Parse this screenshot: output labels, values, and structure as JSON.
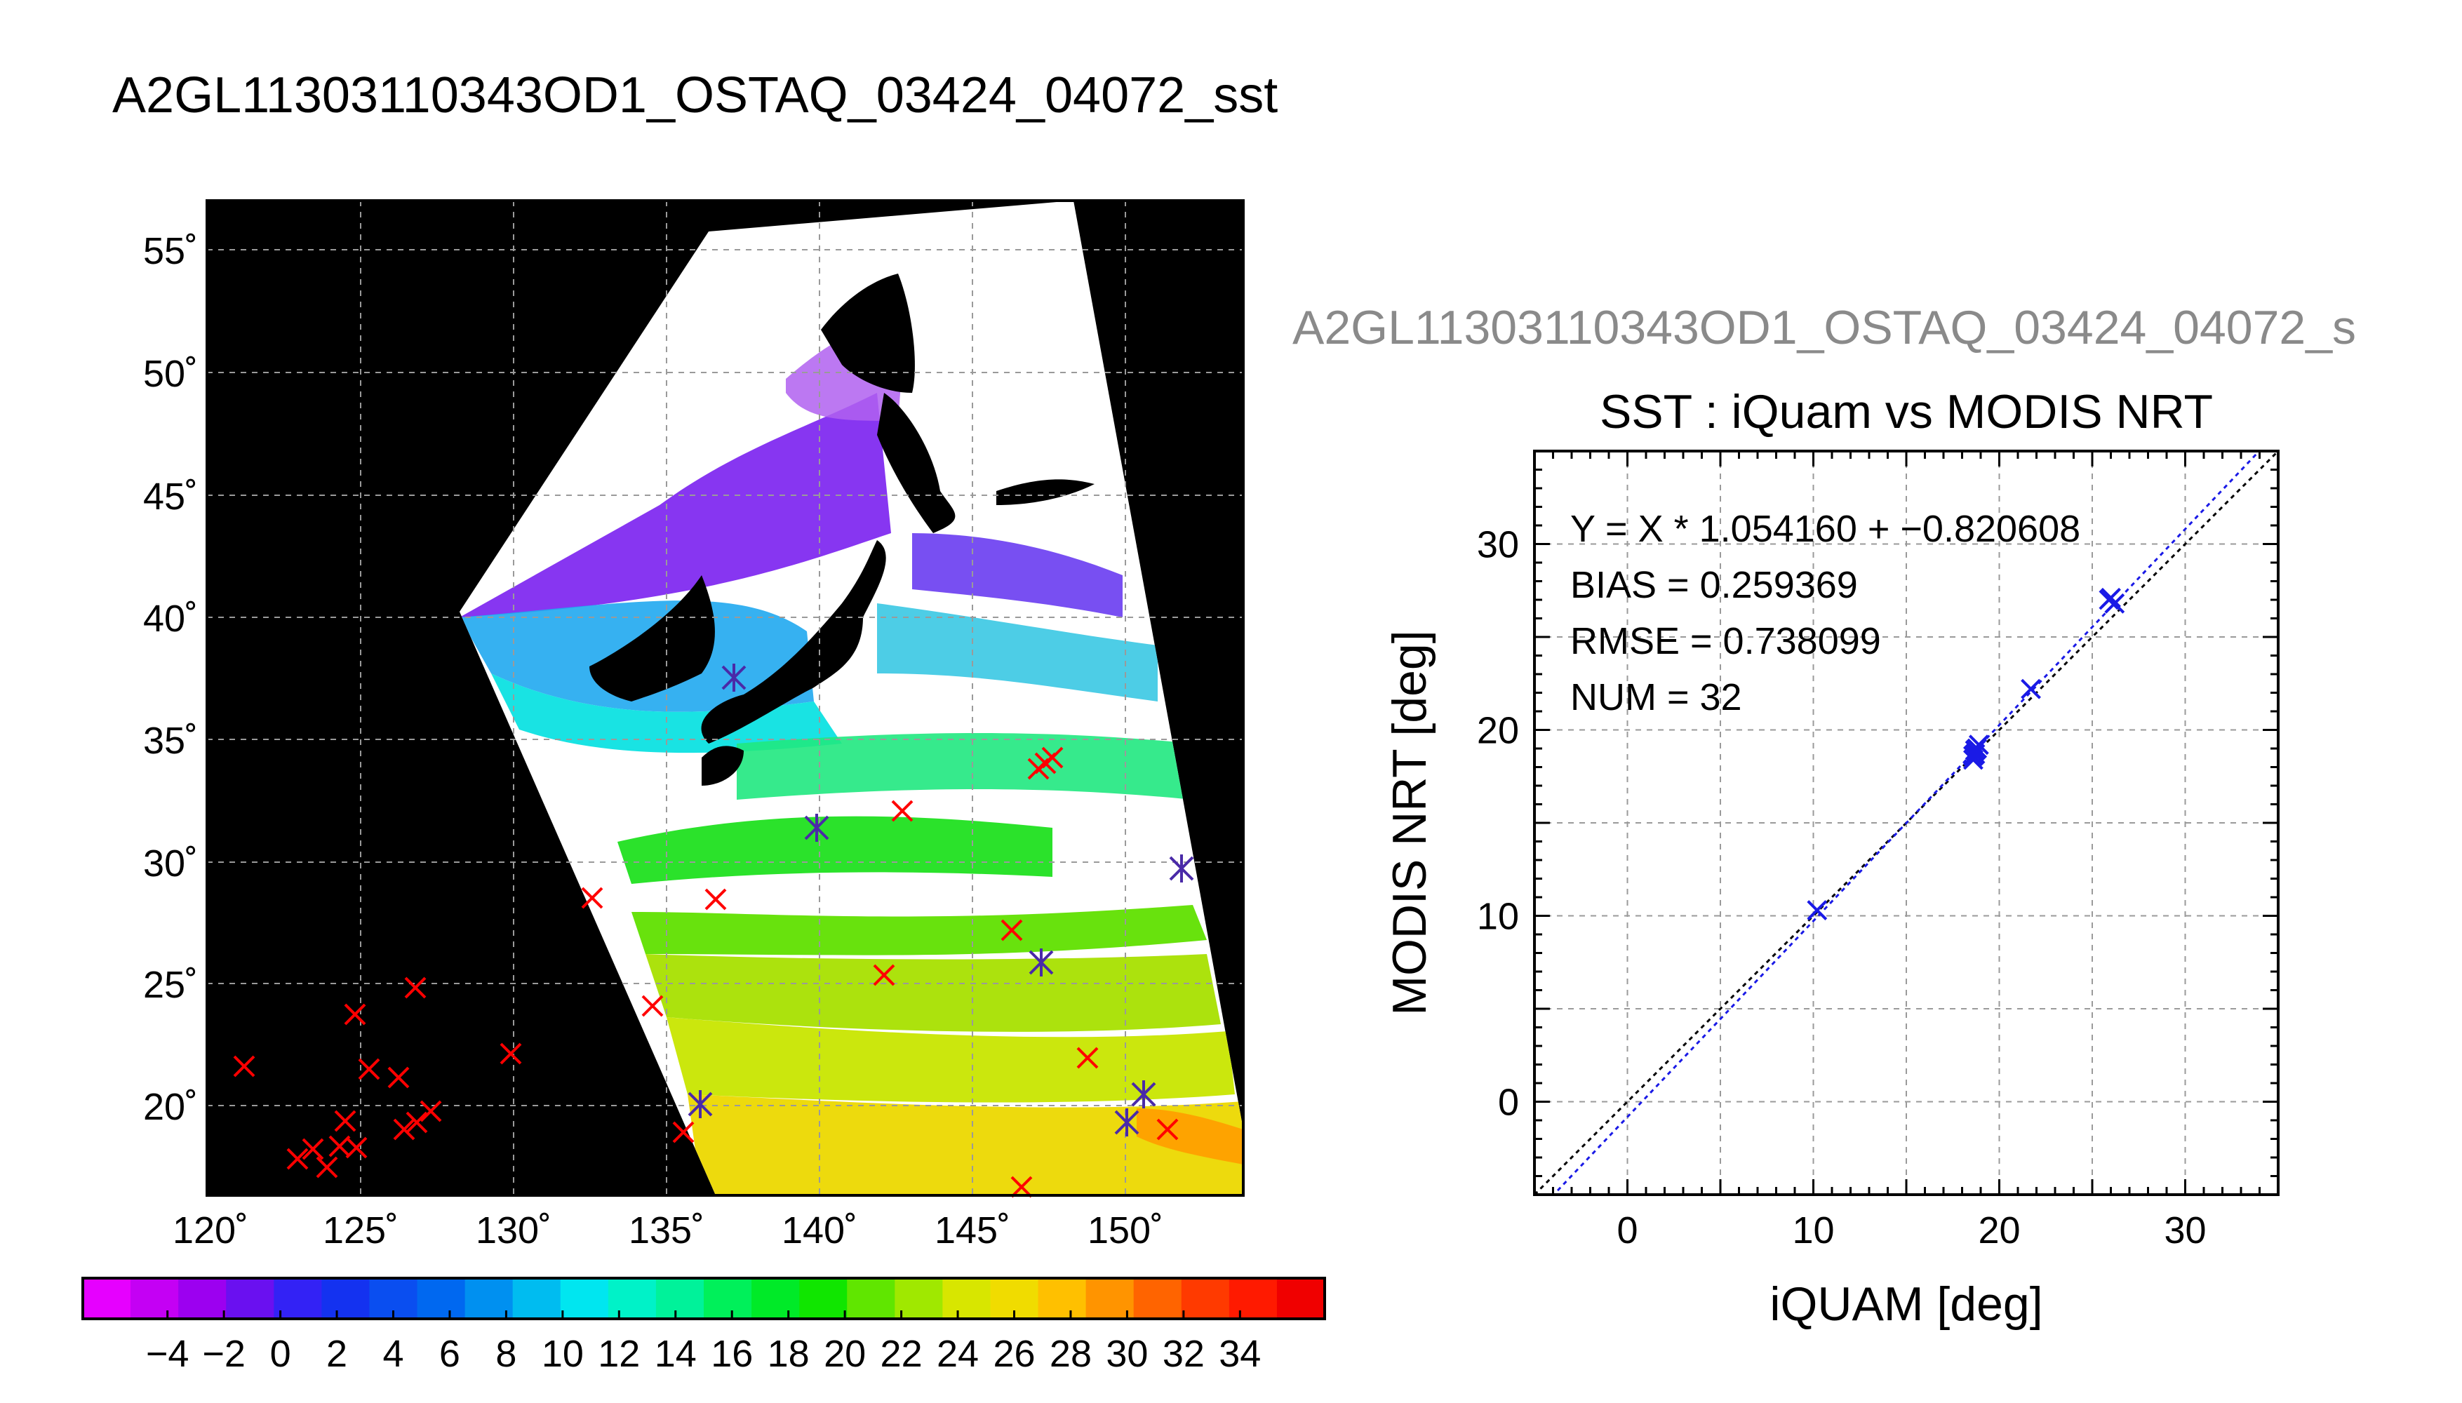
{
  "page_title": "A2GL11303110343OD1_OSTAQ_03424_04072_sst",
  "map": {
    "lat_ticks": [
      "55˚",
      "50˚",
      "45˚",
      "40˚",
      "35˚",
      "30˚",
      "25˚",
      "20˚"
    ],
    "lon_ticks": [
      "120˚",
      "125˚",
      "130˚",
      "135˚",
      "140˚",
      "145˚",
      "150˚"
    ]
  },
  "colorbar": {
    "tick_labels": [
      "−4",
      "−2",
      "0",
      "2",
      "4",
      "6",
      "8",
      "10",
      "12",
      "14",
      "16",
      "18",
      "20",
      "22",
      "24",
      "26",
      "28",
      "30",
      "32",
      "34"
    ],
    "colors": [
      "#e600ff",
      "#c400f4",
      "#9c00f0",
      "#6a10f0",
      "#3322f5",
      "#1432f0",
      "#0a4ef0",
      "#0068f0",
      "#0090f0",
      "#00bcf0",
      "#00e6f0",
      "#00f2c8",
      "#00f29a",
      "#00f05a",
      "#00ea28",
      "#10e600",
      "#60e600",
      "#a0e800",
      "#d8e600",
      "#f0dc00",
      "#ffc000",
      "#ff9400",
      "#ff6400",
      "#ff3a00",
      "#ff1a00",
      "#f00000"
    ]
  },
  "scatter_subtitle": "A2GL11303110343OD1_OSTAQ_03424_04072_s",
  "chart_data": {
    "type": "scatter",
    "title": "SST : iQuam vs MODIS NRT",
    "xlabel": "iQUAM [deg]",
    "ylabel": "MODIS NRT [deg]",
    "xlim": [
      -5,
      35
    ],
    "ylim": [
      -5,
      35
    ],
    "xticks": [
      "0",
      "10",
      "20",
      "30"
    ],
    "yticks": [
      "0",
      "10",
      "20",
      "30"
    ],
    "grid": true,
    "stats": [
      "Y = X * 1.054160 + −0.820608",
      "BIAS = 0.259369",
      "RMSE = 0.738099",
      "NUM = 32"
    ],
    "regression": {
      "slope": 1.05416,
      "intercept": -0.820608
    },
    "points": [
      {
        "x": 10.2,
        "y": 10.3
      },
      {
        "x": 18.6,
        "y": 18.4
      },
      {
        "x": 18.7,
        "y": 18.7
      },
      {
        "x": 18.8,
        "y": 19.0
      },
      {
        "x": 18.9,
        "y": 19.2
      },
      {
        "x": 18.7,
        "y": 18.9
      },
      {
        "x": 18.6,
        "y": 18.6
      },
      {
        "x": 21.7,
        "y": 22.2
      },
      {
        "x": 25.9,
        "y": 27.0
      },
      {
        "x": 26.2,
        "y": 26.8
      },
      {
        "x": 26.0,
        "y": 27.1
      }
    ]
  }
}
